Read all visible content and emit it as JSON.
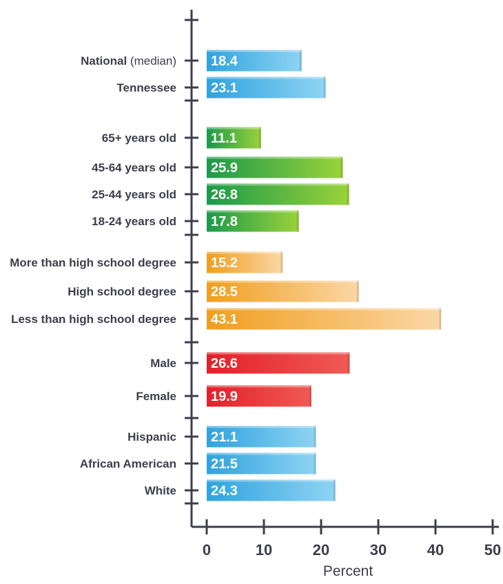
{
  "chart_data": {
    "type": "bar",
    "orientation": "horizontal",
    "xlabel": "Percent",
    "xlim": [
      0,
      50
    ],
    "xticks": [
      0,
      10,
      20,
      30,
      40,
      50
    ],
    "grid": false,
    "groups": [
      {
        "color": "blue",
        "gradient": [
          "#2ea3de",
          "#8fd3f4"
        ],
        "bars": [
          {
            "label": "National",
            "label_note": "(median)",
            "value": 18.4,
            "value_label": "18.4",
            "drawn_value": 16.6
          },
          {
            "label": "Tennessee",
            "value": 23.1,
            "value_label": "23.1",
            "drawn_value": 20.8
          }
        ]
      },
      {
        "color": "green",
        "gradient": [
          "#1a9a4a",
          "#9bd23a"
        ],
        "bars": [
          {
            "label": "65+ years old",
            "value": 11.1,
            "value_label": "11.1",
            "drawn_value": 9.5
          },
          {
            "label": "45-64 years old",
            "value": 25.9,
            "value_label": "25.9",
            "drawn_value": 23.8
          },
          {
            "label": "25-44 years old",
            "value": 26.8,
            "value_label": "26.8",
            "drawn_value": 24.9
          },
          {
            "label": "18-24 years old",
            "value": 17.8,
            "value_label": "17.8",
            "drawn_value": 16.1
          }
        ]
      },
      {
        "color": "orange",
        "gradient": [
          "#f09e1e",
          "#fbd7a6"
        ],
        "bars": [
          {
            "label": "More than high school degree",
            "value": 15.2,
            "value_label": "15.2",
            "drawn_value": 13.3
          },
          {
            "label": "High school degree",
            "value": 28.5,
            "value_label": "28.5",
            "drawn_value": 26.6
          },
          {
            "label": "Less than high school degree",
            "value": 43.1,
            "value_label": "43.1",
            "drawn_value": 41.0
          }
        ]
      },
      {
        "color": "red",
        "gradient": [
          "#e2202a",
          "#f05a55"
        ],
        "bars": [
          {
            "label": "Male",
            "value": 26.6,
            "value_label": "26.6",
            "drawn_value": 25.0
          },
          {
            "label": "Female",
            "value": 19.9,
            "value_label": "19.9",
            "drawn_value": 18.3
          }
        ]
      },
      {
        "color": "blue",
        "gradient": [
          "#2ea3de",
          "#8fd3f4"
        ],
        "bars": [
          {
            "label": "Hispanic",
            "value": 21.1,
            "value_label": "21.1",
            "drawn_value": 19.1
          },
          {
            "label": "African American",
            "value": 21.5,
            "value_label": "21.5",
            "drawn_value": 19.1
          },
          {
            "label": "White",
            "value": 24.3,
            "value_label": "24.3",
            "drawn_value": 22.5
          }
        ]
      }
    ]
  }
}
